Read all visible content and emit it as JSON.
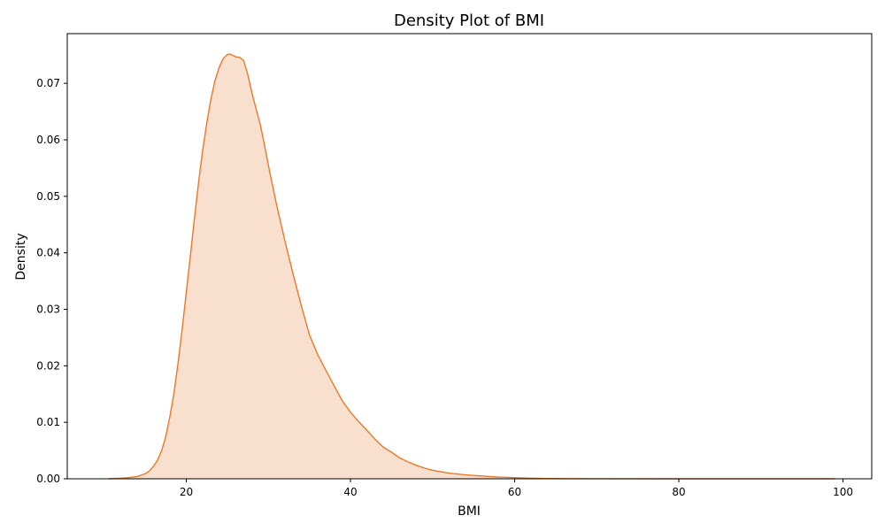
{
  "chart_data": {
    "type": "area",
    "title": "Density Plot of BMI",
    "xlabel": "BMI",
    "ylabel": "Density",
    "xlim": [
      5.5,
      103.5
    ],
    "ylim": [
      0,
      0.0788
    ],
    "xticks": [
      20,
      40,
      60,
      80,
      100
    ],
    "xtick_labels": [
      "20",
      "40",
      "60",
      "80",
      "100"
    ],
    "yticks": [
      0,
      0.01,
      0.02,
      0.03,
      0.04,
      0.05,
      0.06,
      0.07
    ],
    "ytick_labels": [
      "0.00",
      "0.01",
      "0.02",
      "0.03",
      "0.04",
      "0.05",
      "0.06",
      "0.07"
    ],
    "grid": false,
    "colors": {
      "line": "#e8792b",
      "fill": "#f9dfcd"
    },
    "series": [
      {
        "x": [
          10.5,
          12,
          13,
          14,
          15,
          15.5,
          16,
          16.5,
          17,
          17.5,
          18,
          18.5,
          19,
          19.5,
          20,
          20.5,
          21,
          21.5,
          22,
          22.5,
          23,
          23.5,
          24,
          24.5,
          25,
          25.3,
          25.6,
          26,
          26.5,
          27,
          27.5,
          28,
          28.5,
          29,
          29.5,
          30,
          31,
          32,
          33,
          34,
          35,
          36,
          37,
          38,
          39,
          40,
          41,
          42,
          43,
          44,
          45,
          46,
          47,
          48,
          49,
          50,
          52,
          54,
          56,
          58,
          60,
          62,
          64,
          66,
          70,
          80,
          90,
          99
        ],
        "y": [
          0,
          0.0001,
          0.0002,
          0.0004,
          0.0009,
          0.0014,
          0.0022,
          0.0033,
          0.005,
          0.0075,
          0.011,
          0.0152,
          0.0205,
          0.0265,
          0.033,
          0.0395,
          0.0462,
          0.0525,
          0.0582,
          0.063,
          0.0672,
          0.0705,
          0.0728,
          0.0744,
          0.0751,
          0.0752,
          0.075,
          0.0747,
          0.0746,
          0.074,
          0.0715,
          0.0683,
          0.0655,
          0.0628,
          0.0593,
          0.0555,
          0.0485,
          0.0422,
          0.0363,
          0.0307,
          0.0255,
          0.022,
          0.0192,
          0.0165,
          0.0138,
          0.0118,
          0.0101,
          0.0086,
          0.007,
          0.0056,
          0.0047,
          0.0037,
          0.003,
          0.0024,
          0.0019,
          0.0015,
          0.001,
          0.0007,
          0.0005,
          0.0003,
          0.0002,
          0.0001,
          5e-05,
          3e-05,
          1e-05,
          0,
          0,
          0
        ]
      }
    ]
  }
}
